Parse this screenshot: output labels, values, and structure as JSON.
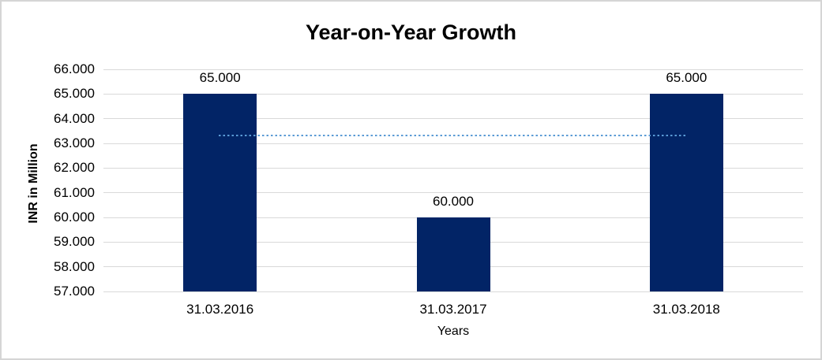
{
  "window": {
    "background_color": "#FFFFFF",
    "border_color": "#D5D5D5"
  },
  "chart_data": {
    "type": "bar",
    "title": "Year-on-Year Growth",
    "xlabel": "Years",
    "ylabel": "INR in Million",
    "categories": [
      "31.03.2016",
      "31.03.2017",
      "31.03.2018"
    ],
    "values": [
      65000,
      60000,
      65000
    ],
    "value_labels": [
      "65.000",
      "60.000",
      "65.000"
    ],
    "ylim": [
      57000,
      66000
    ],
    "y_tick_values": [
      66000,
      65000,
      64000,
      63000,
      62000,
      61000,
      60000,
      59000,
      58000,
      57000
    ],
    "y_tick_labels": [
      "66.000",
      "65.000",
      "64.000",
      "63.000",
      "62.000",
      "61.000",
      "60.000",
      "59.000",
      "58.000",
      "57.000"
    ],
    "grid": "horizontal",
    "legend": "none",
    "bar_color": "#022466",
    "gridline_color": "#D9D9D9",
    "text_color": "#000000",
    "trendline": {
      "type": "linear",
      "value": 63333,
      "color": "#5B9BD5",
      "style": "dotted",
      "span": "first-bar-center-to-last-bar-center"
    }
  }
}
